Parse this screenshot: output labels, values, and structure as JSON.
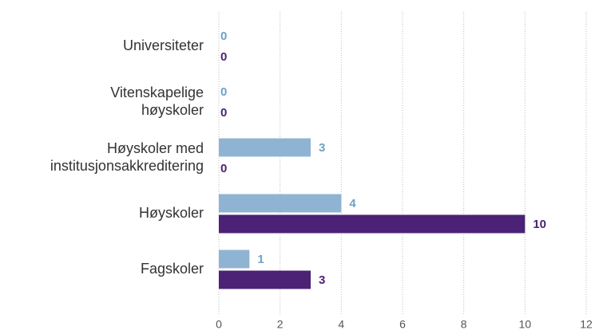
{
  "chart_data": {
    "type": "bar",
    "orientation": "horizontal",
    "categories": [
      [
        "Universiteter"
      ],
      [
        "Vitenskapelige",
        "høyskoler"
      ],
      [
        "Høyskoler med",
        "institusjonsakkreditering"
      ],
      [
        "Høyskoler"
      ],
      [
        "Fagskoler"
      ]
    ],
    "series": [
      {
        "color": "#8fb4d3",
        "label_color": "#6ea2c8",
        "values": [
          0,
          0,
          3,
          4,
          1
        ]
      },
      {
        "color": "#4b2275",
        "label_color": "#4b2275",
        "values": [
          0,
          0,
          0,
          10,
          3
        ]
      }
    ],
    "xlim": [
      0,
      12
    ],
    "xticks": [
      0,
      2,
      4,
      6,
      8,
      10,
      12
    ],
    "grid": true
  }
}
